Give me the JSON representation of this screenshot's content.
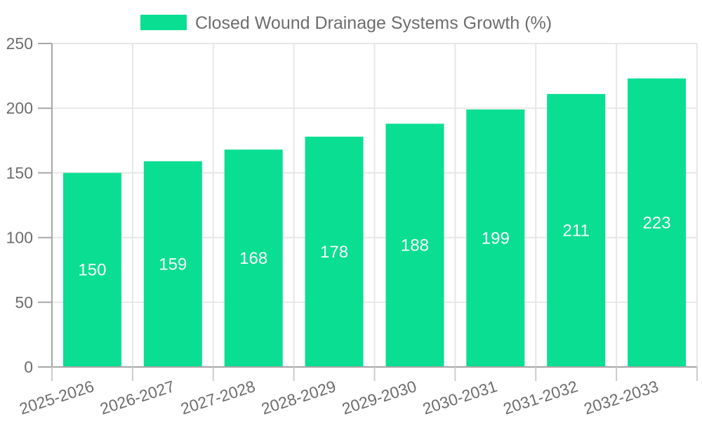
{
  "legend": {
    "label": "Closed Wound Drainage Systems Growth (%)"
  },
  "chart_data": {
    "type": "bar",
    "title": "",
    "xlabel": "",
    "ylabel": "",
    "categories": [
      "2025-2026",
      "2026-2027",
      "2027-2028",
      "2028-2029",
      "2029-2030",
      "2030-2031",
      "2031-2032",
      "2032-2033"
    ],
    "values": [
      150,
      159,
      168,
      178,
      188,
      199,
      211,
      223
    ],
    "series_name": "Closed Wound Drainage Systems Growth (%)",
    "ylim": [
      0,
      250
    ],
    "yticks": [
      0,
      50,
      100,
      150,
      200,
      250
    ],
    "grid": true,
    "legend_position": "top-center",
    "value_labels": "inside-center-white",
    "x_label_rotation_deg": -18,
    "bar_color": "#0ade92"
  },
  "colors": {
    "bar": "#0ade92",
    "text": "#6d6d6d",
    "grid": "#e7e7e7",
    "axis": "#a6a6a6",
    "tick": "#cccccc",
    "value_label": "#ffffff",
    "background": "#ffffff"
  }
}
